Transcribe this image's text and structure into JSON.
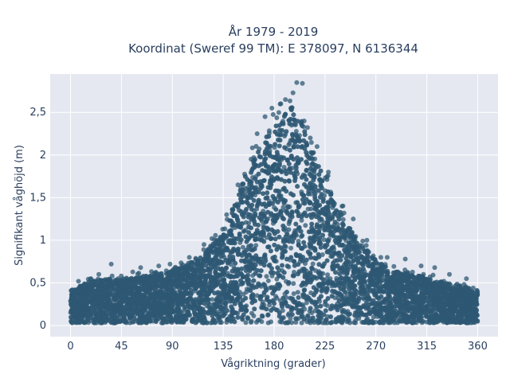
{
  "chart_data": {
    "type": "scatter",
    "title_line1": "År 1979 - 2019",
    "title_line2": "Koordinat (Sweref 99 TM): E 378097, N 6136344",
    "xlabel": "Vågriktning (grader)",
    "ylabel": "Signifikant våghöjd (m)",
    "xlim": [
      -18,
      378
    ],
    "ylim": [
      -0.13,
      2.95
    ],
    "x_ticks": [
      0,
      45,
      90,
      135,
      180,
      225,
      270,
      315,
      360
    ],
    "x_tick_labels": [
      "0",
      "45",
      "90",
      "135",
      "180",
      "225",
      "270",
      "315",
      "360"
    ],
    "y_ticks": [
      0,
      0.5,
      1,
      1.5,
      2,
      2.5
    ],
    "y_tick_labels": [
      "0",
      "0,5",
      "1",
      "1,5",
      "2",
      "2,5"
    ],
    "grid": true,
    "legend": "none",
    "marker_color": "#2e5873",
    "background_color": "#e5e8f0",
    "envelope": {
      "direction": [
        0,
        15,
        30,
        45,
        60,
        75,
        90,
        105,
        120,
        135,
        145,
        155,
        165,
        175,
        185,
        195,
        205,
        215,
        225,
        235,
        245,
        255,
        270,
        285,
        300,
        315,
        330,
        345,
        360
      ],
      "max_height": [
        0.45,
        0.55,
        0.6,
        0.6,
        0.62,
        0.65,
        0.7,
        0.78,
        0.95,
        1.2,
        1.55,
        1.95,
        2.2,
        2.45,
        2.6,
        2.8,
        2.6,
        2.2,
        1.85,
        1.55,
        1.3,
        1.05,
        0.85,
        0.7,
        0.65,
        0.62,
        0.55,
        0.5,
        0.45
      ]
    },
    "outliers": [
      {
        "x": 7,
        "y": 0.52
      },
      {
        "x": 18,
        "y": 0.55
      },
      {
        "x": 25,
        "y": 0.6
      },
      {
        "x": 36,
        "y": 0.72
      },
      {
        "x": 42,
        "y": 0.55
      },
      {
        "x": 55,
        "y": 0.63
      },
      {
        "x": 62,
        "y": 0.68
      },
      {
        "x": 78,
        "y": 0.7
      },
      {
        "x": 88,
        "y": 0.72
      },
      {
        "x": 105,
        "y": 0.8
      },
      {
        "x": 118,
        "y": 0.95
      },
      {
        "x": 125,
        "y": 1.02
      },
      {
        "x": 138,
        "y": 1.3
      },
      {
        "x": 148,
        "y": 1.65
      },
      {
        "x": 165,
        "y": 2.25
      },
      {
        "x": 172,
        "y": 2.45
      },
      {
        "x": 178,
        "y": 2.55
      },
      {
        "x": 190,
        "y": 2.65
      },
      {
        "x": 200,
        "y": 2.85
      },
      {
        "x": 205,
        "y": 2.84
      },
      {
        "x": 212,
        "y": 2.2
      },
      {
        "x": 218,
        "y": 2.1
      },
      {
        "x": 228,
        "y": 1.8
      },
      {
        "x": 240,
        "y": 1.4
      },
      {
        "x": 250,
        "y": 1.25
      },
      {
        "x": 262,
        "y": 1.0
      },
      {
        "x": 280,
        "y": 0.8
      },
      {
        "x": 296,
        "y": 0.78
      },
      {
        "x": 310,
        "y": 0.7
      },
      {
        "x": 322,
        "y": 0.68
      },
      {
        "x": 335,
        "y": 0.6
      },
      {
        "x": 350,
        "y": 0.55
      }
    ]
  }
}
